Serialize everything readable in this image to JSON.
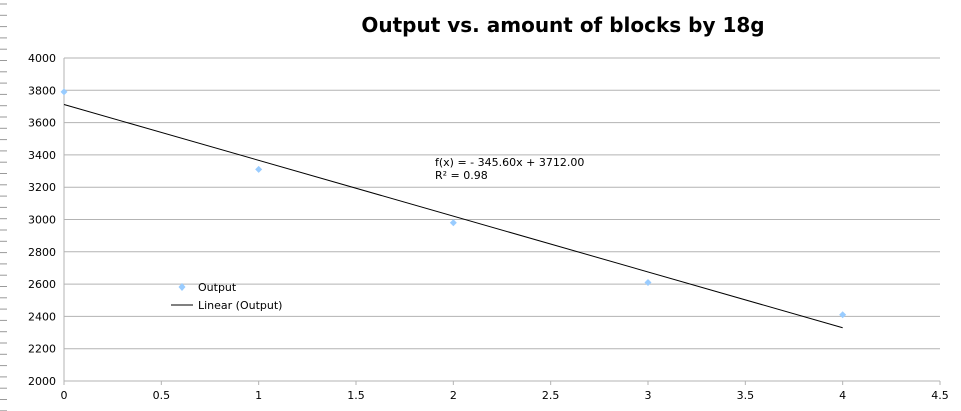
{
  "chart_data": {
    "type": "scatter",
    "title": "Output vs. amount of blocks by 18g",
    "xlim": [
      0,
      4.5
    ],
    "ylim": [
      2000,
      4000
    ],
    "x_ticks": [
      "0",
      "0.5",
      "1",
      "1.5",
      "2",
      "2.5",
      "3",
      "3.5",
      "4",
      "4.5"
    ],
    "y_ticks": [
      "4000",
      "3800",
      "3600",
      "3400",
      "3200",
      "3000",
      "2800",
      "2600",
      "2400",
      "2200",
      "2000"
    ],
    "grid": true,
    "series": [
      {
        "name": "Output",
        "color": "#99ccff",
        "marker": "diamond",
        "x": [
          0,
          1,
          2,
          3,
          4
        ],
        "y": [
          3790,
          3310,
          2980,
          2610,
          2410
        ]
      }
    ],
    "trendline": {
      "name": "Linear (Output)",
      "color": "#000000",
      "slope": -345.6,
      "intercept": 3712,
      "x_range": [
        0,
        4
      ],
      "equation_text": "f(x) =  - 345.60x + 3712.00",
      "r2_text": "R² = 0.98"
    },
    "legend_position": "left-bottom"
  }
}
